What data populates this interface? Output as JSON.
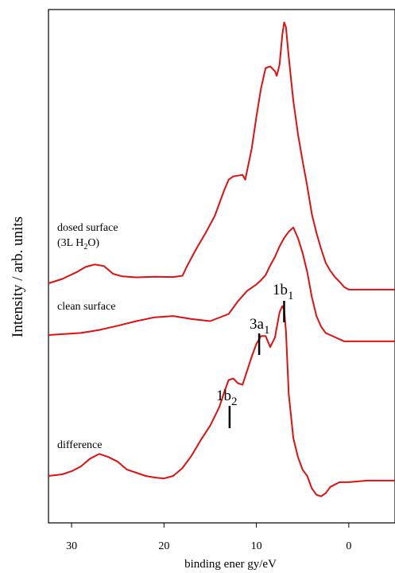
{
  "chart_data": {
    "type": "line",
    "title": "",
    "xlabel": "binding ener gy/eV",
    "ylabel": "Intensity / arb. units",
    "xlim": [
      32.5,
      -5
    ],
    "x_reversed": true,
    "xticks": [
      30,
      20,
      10,
      0
    ],
    "y_ticks_shown": false,
    "grid": false,
    "line_color": "#e01010",
    "annotation_color": "#000000",
    "series": [
      {
        "label": "dosed surface",
        "label_line2": "(3L H",
        "label_sub": "2",
        "label_line2_end": "O)",
        "x": [
          32.5,
          31,
          29.5,
          28.5,
          27.5,
          26.5,
          25.5,
          24.5,
          23,
          21,
          19,
          18,
          17.5,
          16.5,
          15.5,
          14.5,
          13.5,
          13,
          12.5,
          11.5,
          11.2,
          10.5,
          10,
          9.5,
          9,
          8.5,
          8,
          7.8,
          7.5,
          7.2,
          7,
          6.8,
          6.5,
          6,
          5.5,
          5,
          4.5,
          4,
          3.5,
          3,
          2.5,
          2,
          1.5,
          1,
          0.5,
          0,
          -5
        ],
        "values": [
          0.0,
          0.14,
          0.35,
          0.52,
          0.6,
          0.55,
          0.3,
          0.22,
          0.19,
          0.21,
          0.2,
          0.24,
          0.55,
          1.1,
          1.6,
          2.15,
          2.95,
          3.3,
          3.4,
          3.45,
          3.3,
          4.3,
          5.3,
          6.2,
          6.85,
          6.9,
          6.75,
          6.6,
          6.95,
          7.9,
          8.3,
          8.15,
          7.2,
          5.8,
          4.75,
          3.9,
          3.1,
          2.2,
          1.6,
          1.1,
          0.65,
          0.4,
          0.2,
          0.05,
          -0.12,
          -0.2,
          -0.2
        ]
      },
      {
        "label": "clean surface",
        "x": [
          32.5,
          31,
          29,
          27,
          25,
          23,
          21,
          19,
          17,
          15,
          13,
          12,
          11,
          10,
          9.5,
          9,
          8.5,
          8,
          7.5,
          7,
          6.5,
          6,
          5.5,
          5,
          4.5,
          4,
          3.5,
          3,
          2.5,
          2,
          1.5,
          1,
          0.5,
          0,
          -5
        ],
        "values": [
          0.0,
          0.02,
          0.05,
          0.12,
          0.22,
          0.33,
          0.42,
          0.45,
          0.38,
          0.33,
          0.5,
          0.8,
          1.05,
          1.2,
          1.3,
          1.42,
          1.65,
          1.85,
          2.1,
          2.3,
          2.45,
          2.55,
          2.3,
          1.95,
          1.5,
          0.9,
          0.45,
          0.2,
          0.05,
          0,
          -0.05,
          -0.1,
          -0.15,
          -0.15,
          -0.15
        ]
      },
      {
        "label": "difference",
        "x": [
          32.5,
          31,
          30,
          29,
          28,
          27,
          26,
          25,
          24,
          23,
          22,
          21,
          20,
          19,
          18,
          17,
          16,
          15,
          14,
          13.5,
          13,
          12.5,
          12,
          11.5,
          11,
          10.5,
          10,
          9.5,
          9,
          8.5,
          8,
          7.5,
          7.2,
          7,
          6.8,
          6.5,
          6,
          5.5,
          5,
          4.5,
          4,
          3.5,
          3,
          2.5,
          2,
          1,
          0,
          -2,
          -5
        ],
        "values": [
          0.0,
          0.05,
          0.15,
          0.3,
          0.55,
          0.7,
          0.6,
          0.45,
          0.2,
          0.1,
          0.0,
          -0.05,
          -0.08,
          0.0,
          0.25,
          0.65,
          1.15,
          1.6,
          2.2,
          2.65,
          3.05,
          3.1,
          2.95,
          2.9,
          3.35,
          3.8,
          4.2,
          4.45,
          4.45,
          4.1,
          4.4,
          5.2,
          5.4,
          5.3,
          4.6,
          2.6,
          1.2,
          0.6,
          0.2,
          0.0,
          -0.4,
          -0.6,
          -0.65,
          -0.55,
          -0.35,
          -0.2,
          -0.2,
          -0.15,
          -0.15
        ]
      }
    ],
    "annotations": [
      {
        "text_main": "1b",
        "text_sub": "1",
        "x": 7.0
      },
      {
        "text_main": "3a",
        "text_sub": "1",
        "x": 9.7
      },
      {
        "text_main": "1b",
        "text_sub": "2",
        "x": 12.9
      }
    ]
  }
}
